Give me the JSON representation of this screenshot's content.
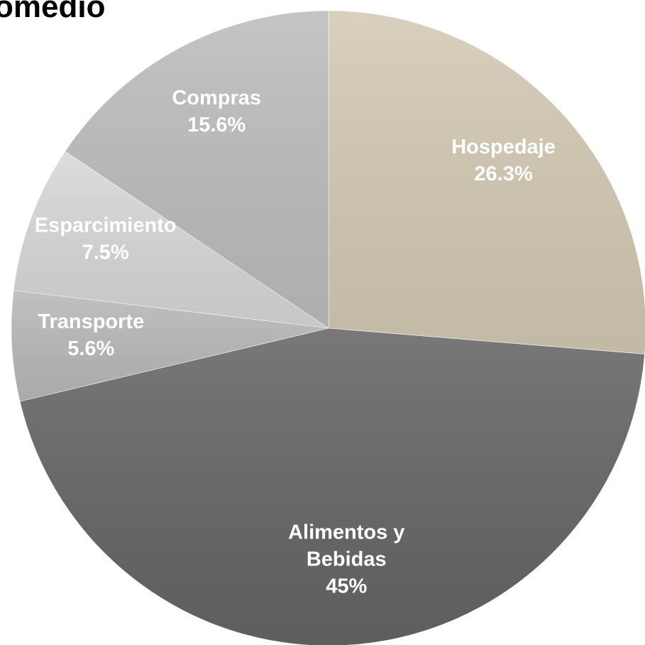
{
  "chart_data": {
    "type": "pie",
    "title": "omedio",
    "categories": [
      "Hospedaje",
      "Alimentos y Bebidas",
      "Transporte",
      "Esparcimiento",
      "Compras"
    ],
    "values": [
      26.3,
      45,
      5.6,
      7.5,
      15.6
    ],
    "value_labels": [
      "26.3%",
      "45%",
      "5.6%",
      "7.5%",
      "15.6%"
    ],
    "colors": [
      "#d3cab3",
      "#666666",
      "#b9b9b9",
      "#d8d8d8",
      "#bdbdbd"
    ]
  }
}
